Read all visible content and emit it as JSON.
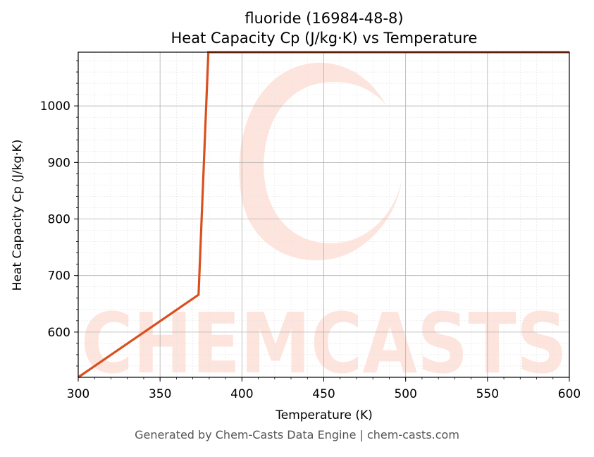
{
  "chart_data": {
    "type": "line",
    "title": "fluoride (16984-48-8)",
    "subtitle": "Heat Capacity Cp (J/kg·K) vs Temperature",
    "xlabel": "Temperature (K)",
    "ylabel": "Heat Capacity Cp (J/kg·K)",
    "xlim": [
      300,
      600
    ],
    "ylim": [
      520,
      1095
    ],
    "x_ticks": [
      300,
      350,
      400,
      450,
      500,
      550,
      600
    ],
    "y_ticks": [
      600,
      700,
      800,
      900,
      1000
    ],
    "grid": true,
    "series": [
      {
        "color": "#d9501e",
        "points": [
          {
            "x": 300,
            "y": 520
          },
          {
            "x": 373.5,
            "y": 666
          },
          {
            "x": 379.5,
            "y": 1095
          },
          {
            "x": 600,
            "y": 1095
          }
        ]
      }
    ]
  },
  "watermark": {
    "text": "CHEMCASTS",
    "color": "#fde0d8"
  },
  "footer": {
    "text": "Generated by Chem-Casts Data Engine | chem-casts.com"
  }
}
